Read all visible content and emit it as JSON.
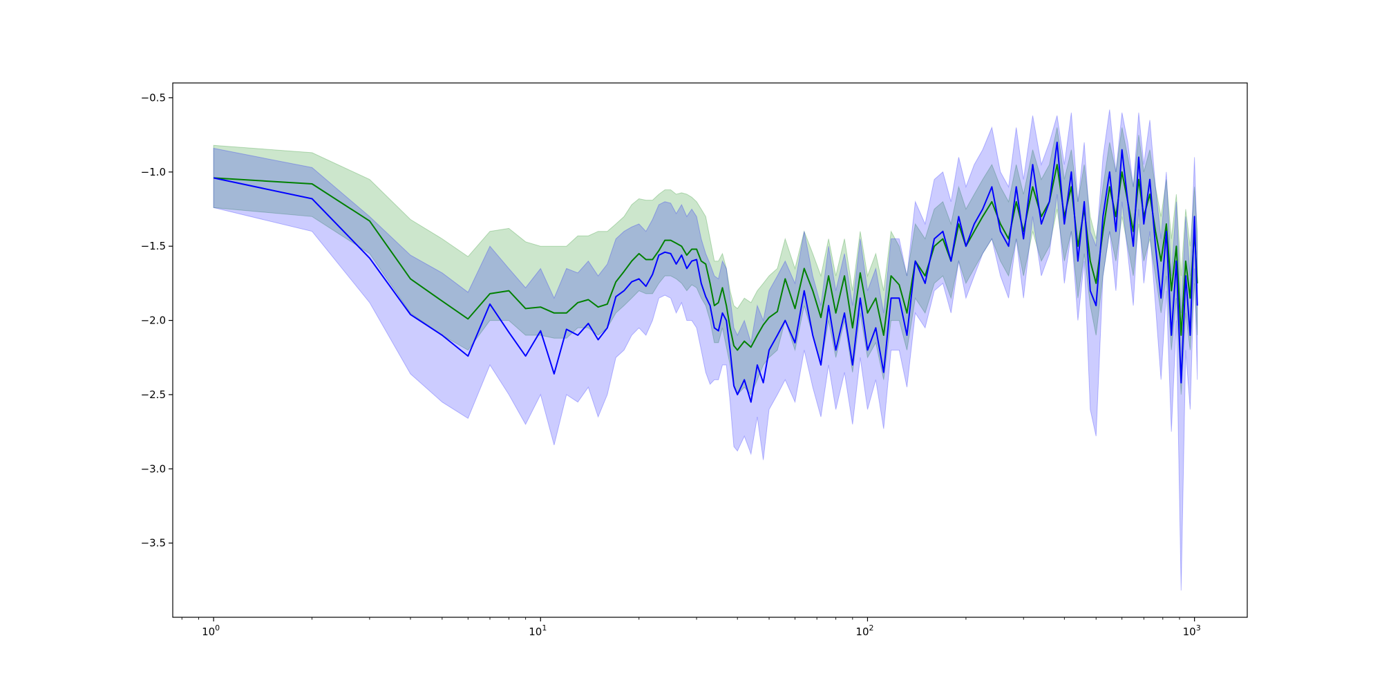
{
  "chart_data": {
    "type": "line",
    "title": "",
    "xlabel": "",
    "ylabel": "",
    "x_scale": "log",
    "xlim": [
      0.75,
      1450
    ],
    "ylim": [
      -4.0,
      -0.4
    ],
    "grid": false,
    "legend": "none",
    "x_ticks": [
      {
        "value": 1,
        "base": "10",
        "exp": "0"
      },
      {
        "value": 10,
        "base": "10",
        "exp": "1"
      },
      {
        "value": 100,
        "base": "10",
        "exp": "2"
      },
      {
        "value": 1000,
        "base": "10",
        "exp": "3"
      }
    ],
    "y_ticks": [
      {
        "value": -0.5,
        "label": "−0.5"
      },
      {
        "value": -1.0,
        "label": "−1.0"
      },
      {
        "value": -1.5,
        "label": "−1.5"
      },
      {
        "value": -2.0,
        "label": "−2.0"
      },
      {
        "value": -2.5,
        "label": "−2.5"
      },
      {
        "value": -3.0,
        "label": "−3.0"
      },
      {
        "value": -3.5,
        "label": "−3.5"
      }
    ],
    "x": [
      1,
      2,
      3,
      4,
      5,
      6,
      7,
      8,
      9,
      10,
      11,
      12,
      13,
      14,
      15,
      16,
      17,
      18,
      19,
      20,
      21,
      22,
      23,
      24,
      25,
      26,
      27,
      28,
      29,
      30,
      31,
      32,
      33,
      34,
      35,
      36,
      37,
      38,
      39,
      40,
      42,
      44,
      46,
      48,
      50,
      53,
      56,
      60,
      64,
      68,
      72,
      76,
      80,
      85,
      90,
      95,
      100,
      106,
      112,
      118,
      125,
      132,
      140,
      150,
      160,
      170,
      180,
      190,
      200,
      212,
      225,
      240,
      255,
      270,
      285,
      300,
      320,
      340,
      360,
      380,
      400,
      420,
      440,
      460,
      480,
      500,
      525,
      550,
      575,
      600,
      625,
      650,
      675,
      700,
      730,
      760,
      790,
      820,
      850,
      880,
      910,
      940,
      970,
      1000,
      1020
    ],
    "series": [
      {
        "color": "#008000",
        "band_color": "#008000",
        "values": [
          -1.04,
          -1.08,
          -1.33,
          -1.72,
          -1.87,
          -1.99,
          -1.82,
          -1.8,
          -1.92,
          -1.91,
          -1.95,
          -1.95,
          -1.88,
          -1.86,
          -1.91,
          -1.89,
          -1.74,
          -1.67,
          -1.6,
          -1.55,
          -1.59,
          -1.59,
          -1.53,
          -1.46,
          -1.46,
          -1.48,
          -1.5,
          -1.56,
          -1.52,
          -1.52,
          -1.6,
          -1.62,
          -1.75,
          -1.9,
          -1.88,
          -1.78,
          -1.9,
          -2.05,
          -2.17,
          -2.2,
          -2.14,
          -2.18,
          -2.1,
          -2.03,
          -1.98,
          -1.94,
          -1.72,
          -1.92,
          -1.65,
          -1.8,
          -1.98,
          -1.7,
          -1.95,
          -1.7,
          -2.05,
          -1.68,
          -1.95,
          -1.85,
          -2.1,
          -1.7,
          -1.76,
          -1.95,
          -1.6,
          -1.7,
          -1.5,
          -1.45,
          -1.6,
          -1.35,
          -1.5,
          -1.4,
          -1.3,
          -1.2,
          -1.35,
          -1.45,
          -1.2,
          -1.4,
          -1.1,
          -1.3,
          -1.2,
          -0.95,
          -1.3,
          -1.1,
          -1.5,
          -1.25,
          -1.6,
          -1.75,
          -1.4,
          -1.1,
          -1.3,
          -1.0,
          -1.2,
          -1.4,
          -1.05,
          -1.3,
          -1.15,
          -1.4,
          -1.6,
          -1.35,
          -1.8,
          -1.5,
          -2.1,
          -1.6,
          -1.85,
          -1.4,
          -1.75
        ],
        "lower": [
          -1.24,
          -1.3,
          -1.55,
          -1.95,
          -2.1,
          -2.2,
          -2.0,
          -2.0,
          -2.1,
          -2.1,
          -2.12,
          -2.12,
          -2.05,
          -2.05,
          -2.1,
          -2.05,
          -1.95,
          -1.9,
          -1.85,
          -1.8,
          -1.82,
          -1.82,
          -1.75,
          -1.7,
          -1.7,
          -1.72,
          -1.75,
          -1.8,
          -1.76,
          -1.78,
          -1.85,
          -1.9,
          -2.0,
          -2.15,
          -2.15,
          -2.05,
          -2.18,
          -2.3,
          -2.45,
          -2.5,
          -2.45,
          -2.5,
          -2.4,
          -2.3,
          -2.25,
          -2.2,
          -2.0,
          -2.2,
          -1.9,
          -2.1,
          -2.3,
          -2.0,
          -2.25,
          -2.0,
          -2.35,
          -1.95,
          -2.25,
          -2.15,
          -2.4,
          -2.0,
          -2.0,
          -2.2,
          -1.85,
          -1.95,
          -1.75,
          -1.7,
          -1.85,
          -1.6,
          -1.75,
          -1.65,
          -1.55,
          -1.45,
          -1.6,
          -1.7,
          -1.45,
          -1.7,
          -1.4,
          -1.6,
          -1.5,
          -1.25,
          -1.6,
          -1.4,
          -1.85,
          -1.55,
          -1.9,
          -2.1,
          -1.7,
          -1.4,
          -1.6,
          -1.3,
          -1.5,
          -1.7,
          -1.35,
          -1.6,
          -1.45,
          -1.7,
          -1.95,
          -1.7,
          -2.2,
          -1.85,
          -2.5,
          -1.95,
          -2.2,
          -1.75,
          -2.1
        ],
        "upper": [
          -0.82,
          -0.87,
          -1.05,
          -1.32,
          -1.45,
          -1.57,
          -1.4,
          -1.38,
          -1.47,
          -1.5,
          -1.5,
          -1.5,
          -1.43,
          -1.43,
          -1.4,
          -1.4,
          -1.35,
          -1.3,
          -1.22,
          -1.18,
          -1.19,
          -1.19,
          -1.15,
          -1.12,
          -1.12,
          -1.15,
          -1.14,
          -1.15,
          -1.17,
          -1.2,
          -1.25,
          -1.3,
          -1.45,
          -1.6,
          -1.6,
          -1.55,
          -1.65,
          -1.8,
          -1.9,
          -1.92,
          -1.85,
          -1.88,
          -1.8,
          -1.75,
          -1.7,
          -1.65,
          -1.45,
          -1.65,
          -1.4,
          -1.55,
          -1.7,
          -1.45,
          -1.7,
          -1.45,
          -1.8,
          -1.4,
          -1.7,
          -1.55,
          -1.8,
          -1.4,
          -1.5,
          -1.7,
          -1.35,
          -1.45,
          -1.25,
          -1.2,
          -1.35,
          -1.1,
          -1.25,
          -1.15,
          -1.05,
          -0.95,
          -1.1,
          -1.2,
          -0.95,
          -1.15,
          -0.85,
          -1.05,
          -0.95,
          -0.7,
          -1.05,
          -0.85,
          -1.2,
          -0.95,
          -1.3,
          -1.45,
          -1.1,
          -0.8,
          -1.0,
          -0.7,
          -0.9,
          -1.1,
          -0.75,
          -1.0,
          -0.85,
          -1.1,
          -1.3,
          -1.05,
          -1.45,
          -1.15,
          -1.7,
          -1.25,
          -1.5,
          -1.1,
          -1.4
        ]
      },
      {
        "color": "#0000ff",
        "band_color": "#0000ff",
        "values": [
          -1.04,
          -1.18,
          -1.58,
          -1.96,
          -2.1,
          -2.24,
          -1.89,
          -2.08,
          -2.24,
          -2.07,
          -2.36,
          -2.06,
          -2.1,
          -2.02,
          -2.13,
          -2.05,
          -1.84,
          -1.8,
          -1.74,
          -1.72,
          -1.77,
          -1.69,
          -1.56,
          -1.54,
          -1.55,
          -1.62,
          -1.56,
          -1.65,
          -1.6,
          -1.59,
          -1.75,
          -1.84,
          -1.9,
          -2.05,
          -2.07,
          -1.95,
          -2.0,
          -2.2,
          -2.44,
          -2.5,
          -2.4,
          -2.55,
          -2.3,
          -2.42,
          -2.2,
          -2.1,
          -2.0,
          -2.15,
          -1.8,
          -2.1,
          -2.3,
          -1.9,
          -2.2,
          -1.95,
          -2.3,
          -1.85,
          -2.2,
          -2.05,
          -2.35,
          -1.85,
          -1.85,
          -2.1,
          -1.6,
          -1.75,
          -1.45,
          -1.4,
          -1.6,
          -1.3,
          -1.5,
          -1.35,
          -1.25,
          -1.1,
          -1.4,
          -1.5,
          -1.1,
          -1.45,
          -0.95,
          -1.35,
          -1.2,
          -0.8,
          -1.35,
          -1.0,
          -1.6,
          -1.2,
          -1.8,
          -1.9,
          -1.3,
          -1.0,
          -1.4,
          -0.85,
          -1.2,
          -1.5,
          -0.9,
          -1.35,
          -1.05,
          -1.5,
          -1.85,
          -1.4,
          -2.1,
          -1.6,
          -2.42,
          -1.7,
          -2.1,
          -1.3,
          -1.9
        ],
        "lower": [
          -1.24,
          -1.4,
          -1.88,
          -2.36,
          -2.55,
          -2.66,
          -2.3,
          -2.5,
          -2.7,
          -2.5,
          -2.84,
          -2.5,
          -2.55,
          -2.45,
          -2.65,
          -2.5,
          -2.25,
          -2.2,
          -2.1,
          -2.05,
          -2.1,
          -2.0,
          -1.85,
          -1.83,
          -1.85,
          -1.95,
          -1.88,
          -2.0,
          -2.0,
          -2.05,
          -2.2,
          -2.35,
          -2.43,
          -2.4,
          -2.4,
          -2.3,
          -2.3,
          -2.55,
          -2.85,
          -2.88,
          -2.78,
          -2.9,
          -2.65,
          -2.94,
          -2.6,
          -2.5,
          -2.4,
          -2.55,
          -2.2,
          -2.45,
          -2.65,
          -2.3,
          -2.6,
          -2.35,
          -2.7,
          -2.25,
          -2.6,
          -2.4,
          -2.73,
          -2.2,
          -2.2,
          -2.45,
          -1.95,
          -2.05,
          -1.8,
          -1.75,
          -1.95,
          -1.6,
          -1.85,
          -1.7,
          -1.55,
          -1.45,
          -1.7,
          -1.85,
          -1.45,
          -1.85,
          -1.3,
          -1.7,
          -1.55,
          -1.15,
          -1.75,
          -1.4,
          -2.0,
          -1.6,
          -2.6,
          -2.78,
          -1.7,
          -1.4,
          -1.8,
          -1.2,
          -1.55,
          -1.9,
          -1.25,
          -1.75,
          -1.4,
          -1.9,
          -2.4,
          -1.8,
          -2.75,
          -2.0,
          -3.82,
          -2.2,
          -2.6,
          -1.65,
          -2.4
        ],
        "upper": [
          -0.84,
          -0.97,
          -1.3,
          -1.56,
          -1.68,
          -1.81,
          -1.5,
          -1.65,
          -1.78,
          -1.65,
          -1.85,
          -1.65,
          -1.68,
          -1.6,
          -1.7,
          -1.62,
          -1.45,
          -1.4,
          -1.37,
          -1.35,
          -1.4,
          -1.32,
          -1.22,
          -1.2,
          -1.21,
          -1.28,
          -1.22,
          -1.3,
          -1.25,
          -1.3,
          -1.45,
          -1.55,
          -1.62,
          -1.7,
          -1.72,
          -1.6,
          -1.65,
          -1.85,
          -2.05,
          -2.1,
          -2.0,
          -2.15,
          -1.9,
          -2.0,
          -1.8,
          -1.7,
          -1.6,
          -1.75,
          -1.4,
          -1.7,
          -1.9,
          -1.5,
          -1.8,
          -1.55,
          -1.9,
          -1.45,
          -1.8,
          -1.65,
          -1.95,
          -1.45,
          -1.45,
          -1.7,
          -1.2,
          -1.35,
          -1.05,
          -1.0,
          -1.2,
          -0.9,
          -1.1,
          -0.95,
          -0.85,
          -0.7,
          -1.0,
          -1.1,
          -0.7,
          -1.05,
          -0.62,
          -0.95,
          -0.8,
          -0.62,
          -0.95,
          -0.6,
          -1.2,
          -0.8,
          -1.4,
          -1.5,
          -0.9,
          -0.58,
          -1.0,
          -0.6,
          -0.8,
          -1.1,
          -0.6,
          -0.95,
          -0.65,
          -1.1,
          -1.45,
          -1.0,
          -1.7,
          -1.2,
          -1.95,
          -1.3,
          -1.7,
          -0.9,
          -1.5
        ]
      }
    ]
  }
}
